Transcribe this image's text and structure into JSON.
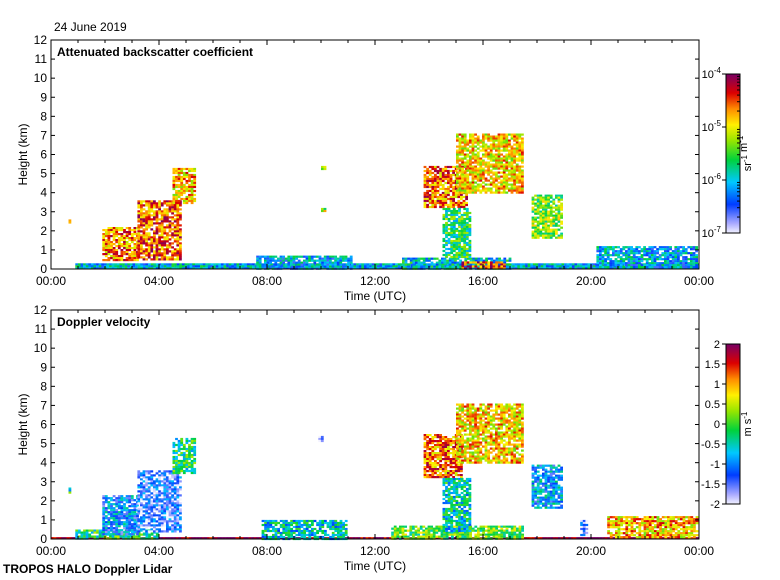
{
  "date_label": "24 June 2019",
  "footer_label": "TROPOS HALO Doppler Lidar",
  "chart_data": [
    {
      "type": "heatmap",
      "title": "Attenuated backscatter coefficient",
      "xlabel": "Time (UTC)",
      "ylabel": "Height (km)",
      "xlim": [
        0,
        24
      ],
      "ylim": [
        0,
        12
      ],
      "x_ticks": [
        "00:00",
        "04:00",
        "08:00",
        "12:00",
        "16:00",
        "20:00",
        "00:00"
      ],
      "y_ticks": [
        "0",
        "1",
        "2",
        "3",
        "4",
        "5",
        "6",
        "7",
        "8",
        "9",
        "10",
        "11",
        "12"
      ],
      "colorbar": {
        "scale": "log",
        "unit_label": "sr-1 m-1",
        "range": [
          1e-07,
          0.0001
        ],
        "ticks": [
          {
            "base": "10",
            "exp": "-7",
            "value": 1e-07
          },
          {
            "base": "10",
            "exp": "-6",
            "value": 1e-06
          },
          {
            "base": "10",
            "exp": "-5",
            "value": 1e-05
          },
          {
            "base": "10",
            "exp": "-4",
            "value": 0.0001
          }
        ]
      },
      "features": [
        {
          "t0": 0.9,
          "t1": 24.0,
          "h0": 0.0,
          "h1": 0.3,
          "level": 0.32
        },
        {
          "t0": 7.6,
          "t1": 11.2,
          "h0": 0.0,
          "h1": 0.7,
          "level": 0.3
        },
        {
          "t0": 13.0,
          "t1": 17.0,
          "h0": 0.0,
          "h1": 0.6,
          "level": 0.35
        },
        {
          "t0": 20.2,
          "t1": 24.0,
          "h0": 0.0,
          "h1": 1.2,
          "level": 0.3
        },
        {
          "t0": 0.65,
          "t1": 0.75,
          "h0": 2.4,
          "h1": 2.6,
          "level": 0.8
        },
        {
          "t0": 1.9,
          "t1": 3.2,
          "h0": 0.4,
          "h1": 2.2,
          "level": 0.78
        },
        {
          "t0": 3.2,
          "t1": 4.8,
          "h0": 0.5,
          "h1": 3.6,
          "level": 0.82
        },
        {
          "t0": 4.5,
          "t1": 5.4,
          "h0": 3.4,
          "h1": 5.3,
          "level": 0.72
        },
        {
          "t0": 10.0,
          "t1": 10.2,
          "h0": 3.0,
          "h1": 3.2,
          "level": 0.6
        },
        {
          "t0": 10.0,
          "t1": 10.2,
          "h0": 5.2,
          "h1": 5.4,
          "level": 0.65
        },
        {
          "t0": 13.8,
          "t1": 15.4,
          "h0": 3.2,
          "h1": 5.4,
          "level": 0.8
        },
        {
          "t0": 14.5,
          "t1": 15.6,
          "h0": 0.6,
          "h1": 3.2,
          "level": 0.45
        },
        {
          "t0": 15.2,
          "t1": 16.8,
          "h0": 0.0,
          "h1": 0.4,
          "level": 0.85
        },
        {
          "t0": 15.0,
          "t1": 17.5,
          "h0": 4.0,
          "h1": 7.1,
          "level": 0.7
        },
        {
          "t0": 17.8,
          "t1": 19.0,
          "h0": 1.6,
          "h1": 3.9,
          "level": 0.55
        }
      ]
    },
    {
      "type": "heatmap",
      "title": "Doppler velocity",
      "xlabel": "Time (UTC)",
      "ylabel": "Height (km)",
      "xlim": [
        0,
        24
      ],
      "ylim": [
        0,
        12
      ],
      "x_ticks": [
        "00:00",
        "04:00",
        "08:00",
        "12:00",
        "16:00",
        "20:00",
        "00:00"
      ],
      "y_ticks": [
        "0",
        "1",
        "2",
        "3",
        "4",
        "5",
        "6",
        "7",
        "8",
        "9",
        "10",
        "11",
        "12"
      ],
      "colorbar": {
        "scale": "linear",
        "unit_label": "m s-1",
        "range": [
          -2,
          2
        ],
        "ticks": [
          "-2",
          "-1.5",
          "-1",
          "-0.5",
          "0",
          "0.5",
          "1",
          "1.5",
          "2"
        ]
      },
      "features": [
        {
          "t0": 0.0,
          "t1": 24.0,
          "h0": 0.0,
          "h1": 0.1,
          "value": 2.0
        },
        {
          "t0": 0.9,
          "t1": 4.0,
          "h0": 0.0,
          "h1": 0.5,
          "value": -0.2
        },
        {
          "t0": 7.8,
          "t1": 11.0,
          "h0": 0.0,
          "h1": 1.0,
          "value": -0.6
        },
        {
          "t0": 12.6,
          "t1": 17.5,
          "h0": 0.0,
          "h1": 0.7,
          "value": 0.1
        },
        {
          "t0": 20.6,
          "t1": 24.0,
          "h0": 0.0,
          "h1": 1.2,
          "value": 0.9
        },
        {
          "t0": 0.65,
          "t1": 0.75,
          "h0": 2.4,
          "h1": 2.7,
          "value": -0.3
        },
        {
          "t0": 1.9,
          "t1": 3.2,
          "h0": 0.2,
          "h1": 2.3,
          "value": -1.0
        },
        {
          "t0": 3.2,
          "t1": 4.8,
          "h0": 0.3,
          "h1": 3.6,
          "value": -1.4
        },
        {
          "t0": 4.5,
          "t1": 5.4,
          "h0": 3.4,
          "h1": 5.3,
          "value": -0.3
        },
        {
          "t0": 9.9,
          "t1": 10.1,
          "h0": 5.1,
          "h1": 5.4,
          "value": -2.0
        },
        {
          "t0": 13.8,
          "t1": 15.2,
          "h0": 3.2,
          "h1": 5.5,
          "value": 1.2
        },
        {
          "t0": 14.5,
          "t1": 15.6,
          "h0": 0.4,
          "h1": 3.2,
          "value": -0.5
        },
        {
          "t0": 15.0,
          "t1": 17.5,
          "h0": 4.0,
          "h1": 7.1,
          "value": 0.8
        },
        {
          "t0": 17.8,
          "t1": 19.0,
          "h0": 1.6,
          "h1": 3.9,
          "value": -0.9
        },
        {
          "t0": 19.6,
          "t1": 19.9,
          "h0": 0.2,
          "h1": 1.0,
          "value": -1.6
        }
      ]
    }
  ]
}
